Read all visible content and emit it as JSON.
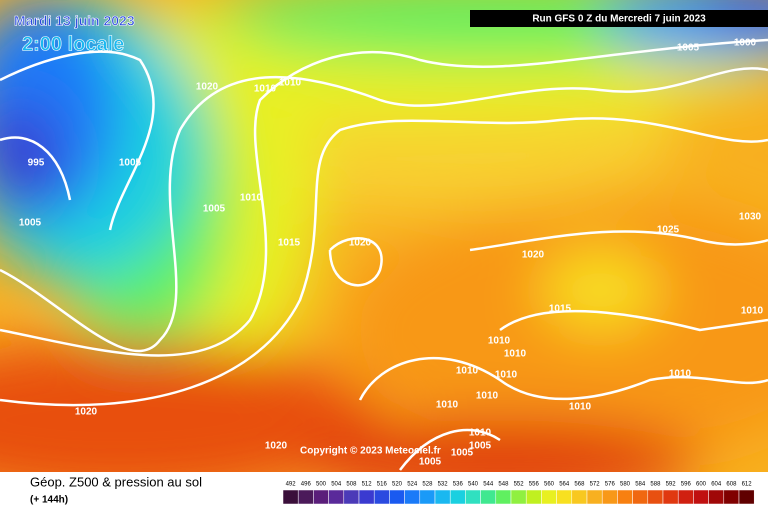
{
  "header": {
    "date": "Mardi 13 juin 2023",
    "time": "2:00 locale",
    "run": "Run GFS 0 Z du Mercredi 7 juin 2023"
  },
  "copyright": "Copyright © 2023 Meteociel.fr",
  "footer": {
    "title": "Géop. Z500 & pression au sol",
    "subtitle": "(+ 144h)"
  },
  "isobar_labels": [
    "1005",
    "1000",
    "1020",
    "1010",
    "1010",
    "995",
    "1005",
    "1005",
    "1010",
    "1005",
    "1015",
    "1020",
    "1020",
    "1025",
    "1030",
    "1015",
    "1010",
    "1010",
    "1010",
    "1010",
    "1010",
    "1010",
    "1010",
    "1010",
    "1010",
    "1020",
    "1010",
    "1005",
    "1005",
    "1005",
    "1020"
  ],
  "scale": {
    "labels": [
      "492",
      "496",
      "500",
      "504",
      "508",
      "512",
      "516",
      "520",
      "524",
      "528",
      "532",
      "536",
      "540",
      "544",
      "548",
      "552",
      "556",
      "560",
      "564",
      "568",
      "572",
      "576",
      "580",
      "584",
      "588",
      "592",
      "596",
      "600",
      "604",
      "608",
      "612"
    ],
    "colors": [
      "#3a0f3a",
      "#4b1a5a",
      "#5a1e7a",
      "#5a2a9a",
      "#4b3ab8",
      "#3a3ad0",
      "#2a4ae0",
      "#1a5af0",
      "#1a7af8",
      "#1a9af8",
      "#1ab8f0",
      "#1ad0e0",
      "#30e0c0",
      "#40e890",
      "#60f060",
      "#90f040",
      "#c0f020",
      "#e8f020",
      "#f8e020",
      "#f8c820",
      "#f8b020",
      "#f89818",
      "#f88010",
      "#f06810",
      "#e85010",
      "#e03810",
      "#d02010",
      "#c01010",
      "#a00808",
      "#800000",
      "#600000"
    ]
  }
}
